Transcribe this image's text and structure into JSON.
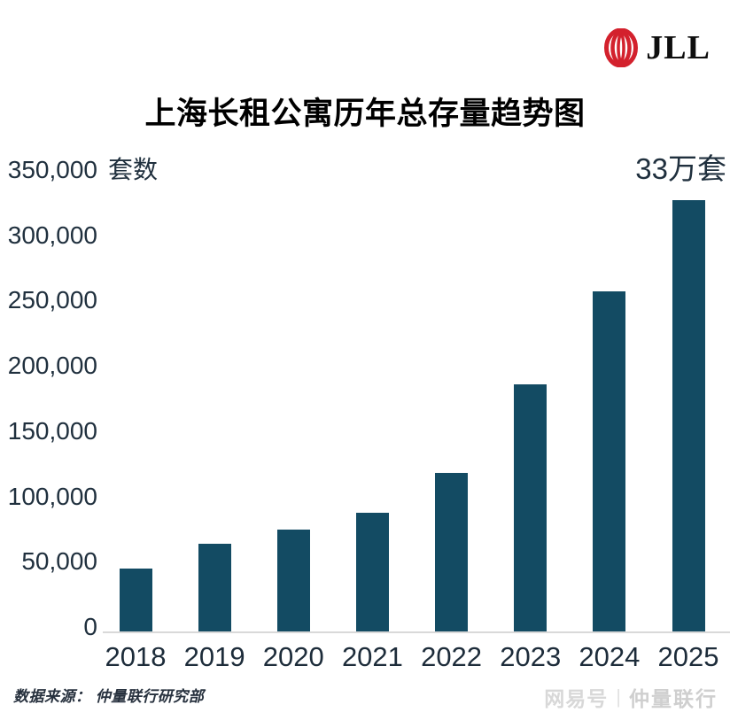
{
  "logo": {
    "text": "JLL",
    "mark_color": "#d3212d"
  },
  "title": "上海长租公寓历年总存量趋势图",
  "chart_data": {
    "type": "bar",
    "title": "上海长租公寓历年总存量趋势图",
    "categories": [
      "2018",
      "2019",
      "2020",
      "2021",
      "2022",
      "2023",
      "2024",
      "2025"
    ],
    "values": [
      48000,
      67000,
      78000,
      91000,
      121000,
      189000,
      260000,
      330000
    ],
    "xlabel": "",
    "ylabel": "套数",
    "ylim": [
      0,
      350000
    ],
    "ytick_labels": [
      "350,000",
      "300,000",
      "250,000",
      "200,000",
      "150,000",
      "100,000",
      "50,000",
      "0"
    ],
    "grid": false,
    "legend": null,
    "bar_color": "#134b63",
    "annotation": {
      "text": "33万套",
      "category": "2025"
    }
  },
  "footer": {
    "source": "数据来源：  仲量联行研究部",
    "watermark": {
      "left": "网易号",
      "separator": "|",
      "right": "仲量联行"
    }
  }
}
